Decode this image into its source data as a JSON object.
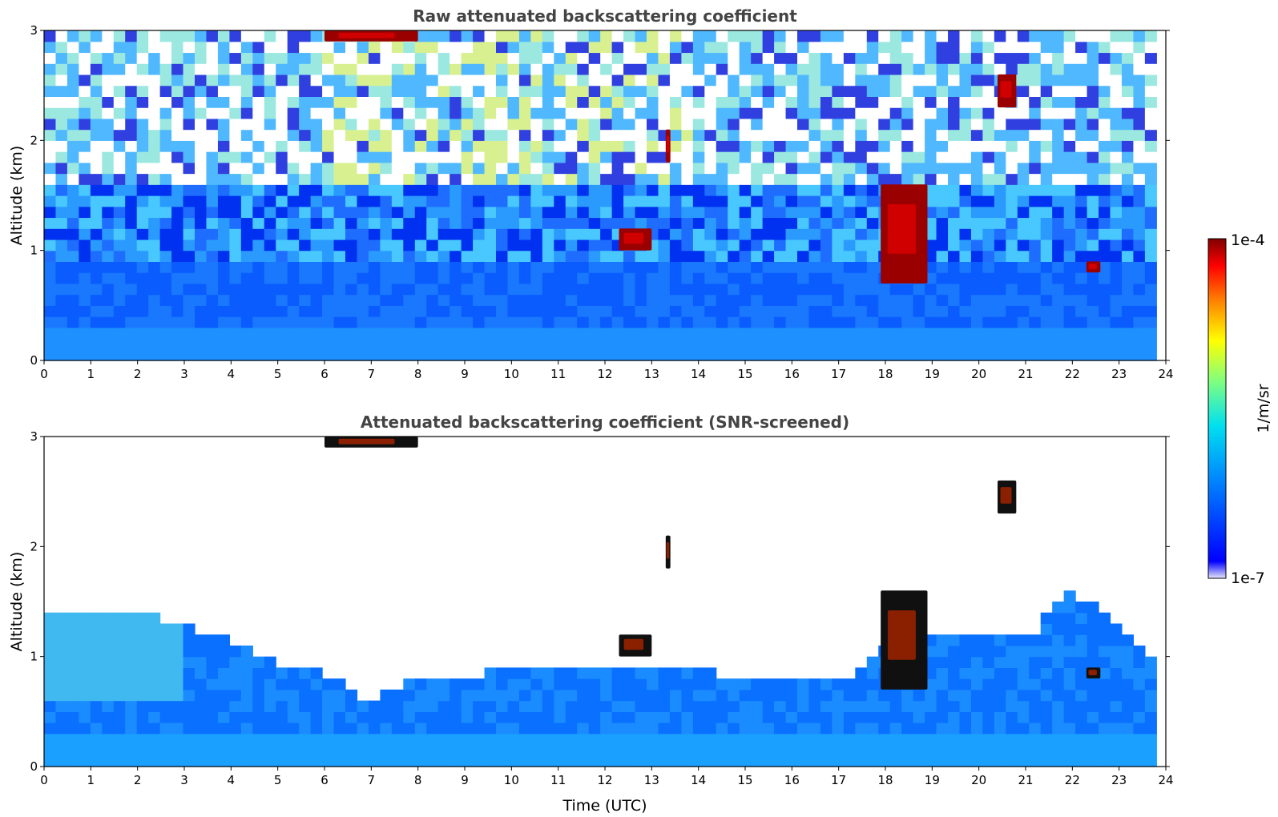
{
  "chart_data": [
    {
      "type": "heatmap",
      "title": "Raw attenuated backscattering coefficient",
      "xlabel": "",
      "ylabel": "Altitude (km)",
      "xlim": [
        0,
        24
      ],
      "ylim": [
        0,
        3
      ],
      "xticks": [
        "0",
        "1",
        "2",
        "3",
        "4",
        "5",
        "6",
        "7",
        "8",
        "9",
        "10",
        "11",
        "12",
        "13",
        "14",
        "15",
        "16",
        "17",
        "18",
        "19",
        "20",
        "21",
        "22",
        "23",
        "24"
      ],
      "yticks": [
        "0",
        "1",
        "2",
        "3"
      ],
      "screened": false,
      "features": [
        {
          "kind": "cloud",
          "x": [
            6.0,
            8.0
          ],
          "y": [
            2.9,
            3.0
          ],
          "intensity": "high"
        },
        {
          "kind": "cloud",
          "x": [
            12.3,
            13.0
          ],
          "y": [
            1.0,
            1.2
          ],
          "intensity": "high"
        },
        {
          "kind": "cloud",
          "x": [
            13.3,
            13.4
          ],
          "y": [
            1.8,
            2.1
          ],
          "intensity": "high"
        },
        {
          "kind": "cloud",
          "x": [
            17.9,
            18.9
          ],
          "y": [
            0.7,
            1.6
          ],
          "intensity": "high"
        },
        {
          "kind": "cloud",
          "x": [
            20.4,
            20.8
          ],
          "y": [
            2.3,
            2.6
          ],
          "intensity": "high"
        },
        {
          "kind": "cloud",
          "x": [
            22.3,
            22.6
          ],
          "y": [
            0.8,
            0.9
          ],
          "intensity": "high"
        }
      ]
    },
    {
      "type": "heatmap",
      "title": "Attenuated backscattering coefficient (SNR-screened)",
      "xlabel": "Time (UTC)",
      "ylabel": "Altitude (km)",
      "xlim": [
        0,
        24
      ],
      "ylim": [
        0,
        3
      ],
      "xticks": [
        "0",
        "1",
        "2",
        "3",
        "4",
        "5",
        "6",
        "7",
        "8",
        "9",
        "10",
        "11",
        "12",
        "13",
        "14",
        "15",
        "16",
        "17",
        "18",
        "19",
        "20",
        "21",
        "22",
        "23",
        "24"
      ],
      "yticks": [
        "0",
        "1",
        "2",
        "3"
      ],
      "screened": true,
      "boundary_layer_top_km": [
        [
          0,
          1.4
        ],
        [
          1,
          1.45
        ],
        [
          2,
          1.4
        ],
        [
          3,
          1.3
        ],
        [
          4,
          1.15
        ],
        [
          5,
          0.95
        ],
        [
          6,
          0.85
        ],
        [
          7,
          0.6
        ],
        [
          8,
          0.85
        ],
        [
          9,
          0.8
        ],
        [
          10,
          0.9
        ],
        [
          11,
          0.85
        ],
        [
          12,
          0.95
        ],
        [
          13,
          0.9
        ],
        [
          14,
          0.9
        ],
        [
          15,
          0.75
        ],
        [
          16,
          0.8
        ],
        [
          17,
          0.75
        ],
        [
          18,
          1.1
        ],
        [
          19,
          1.2
        ],
        [
          20,
          1.2
        ],
        [
          21,
          1.15
        ],
        [
          22,
          1.6
        ],
        [
          23,
          1.3
        ],
        [
          23.8,
          1.0
        ]
      ]
    }
  ],
  "colorbar": {
    "label": "1/m/sr",
    "max_label": "1e-4",
    "min_label": "1e-7",
    "scale": "log",
    "colors": [
      "#e6e6fa",
      "#0000ff",
      "#00a0ff",
      "#00ffb0",
      "#ffff00",
      "#ff7f00",
      "#ff0000",
      "#800000"
    ]
  }
}
